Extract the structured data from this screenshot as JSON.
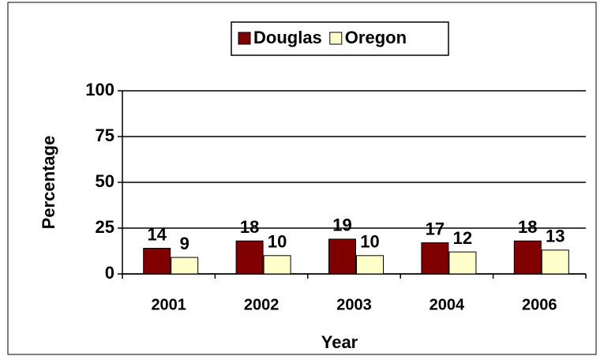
{
  "chart_data": {
    "type": "bar",
    "x_label": "Year",
    "y_label": "Percentage",
    "categories": [
      "2001",
      "2002",
      "2003",
      "2004",
      "2006"
    ],
    "series": [
      {
        "name": "Douglas",
        "color": "#800000",
        "values": [
          14,
          18,
          19,
          17,
          18
        ]
      },
      {
        "name": "Oregon",
        "color": "#ffffcc",
        "values": [
          9,
          10,
          10,
          12,
          13
        ]
      }
    ],
    "ylim": [
      0,
      100
    ],
    "yticks": [
      0,
      25,
      50,
      75,
      100
    ],
    "grid": true,
    "legend": "top"
  }
}
